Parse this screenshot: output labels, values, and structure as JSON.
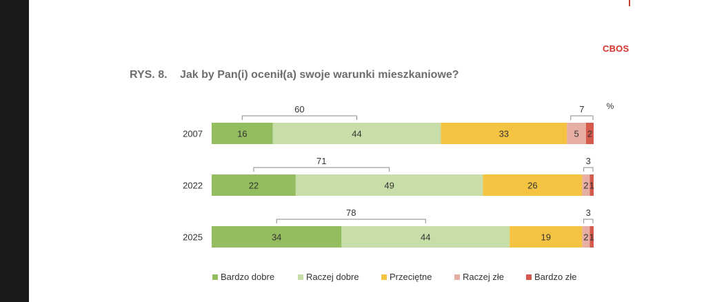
{
  "header": {
    "brand": "CBOS",
    "figure_label": "RYS. 8.",
    "figure_title": "Jak by Pan(i) ocenił(a) swoje warunki mieszkaniowe?"
  },
  "chart_data": {
    "type": "bar",
    "orientation": "horizontal",
    "stacked": true,
    "unit": "%",
    "categories": [
      "2007",
      "2022",
      "2025"
    ],
    "series": [
      {
        "name": "Bardzo dobre",
        "color": "#93bd5f",
        "values": [
          16,
          22,
          34
        ]
      },
      {
        "name": "Raczej dobre",
        "color": "#c8dea9",
        "values": [
          44,
          49,
          44
        ]
      },
      {
        "name": "Przeciętne",
        "color": "#f5c342",
        "values": [
          33,
          26,
          19
        ]
      },
      {
        "name": "Raczej złe",
        "color": "#e7aea3",
        "values": [
          5,
          2,
          2
        ]
      },
      {
        "name": "Bardzo złe",
        "color": "#d45a4b",
        "values": [
          2,
          1,
          1
        ]
      }
    ],
    "good_totals": [
      60,
      71,
      78
    ],
    "bad_totals": [
      7,
      3,
      3
    ],
    "legend_position": "bottom",
    "grid": false
  }
}
